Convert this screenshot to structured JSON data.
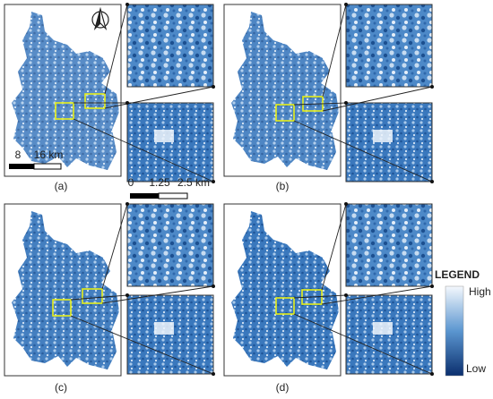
{
  "panels": [
    {
      "label": "(a)"
    },
    {
      "label": "(b)"
    },
    {
      "label": "(c)"
    },
    {
      "label": "(d)"
    }
  ],
  "map_scale": {
    "labels": [
      "8",
      "16 km"
    ]
  },
  "inset_scale": {
    "labels": [
      "0",
      "1.25",
      "2.5 km"
    ]
  },
  "legend": {
    "title": "LEGEND",
    "high": "High",
    "low": "Low"
  }
}
